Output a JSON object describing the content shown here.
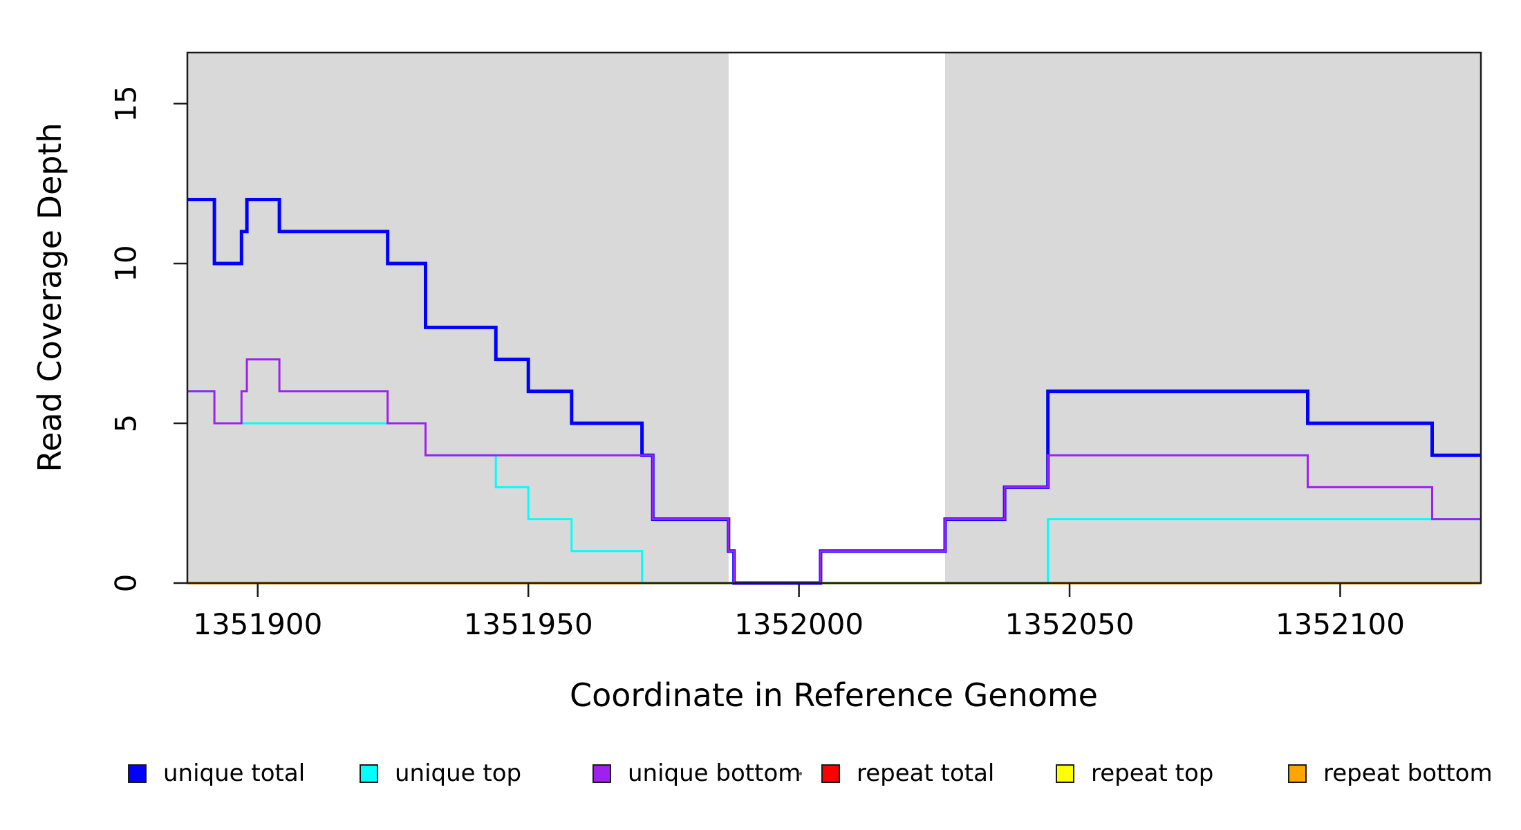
{
  "figure": {
    "x_axis_title": "Coordinate in Reference Genome",
    "y_axis_title": "Read Coverage Depth"
  },
  "chart_data": {
    "type": "line",
    "subtype": "step-after",
    "title": "",
    "xlabel": "Coordinate in Reference Genome",
    "ylabel": "Read Coverage Depth",
    "xlim": [
      1351887,
      1352126
    ],
    "ylim": [
      0,
      16.6
    ],
    "grid": false,
    "legend_position": "bottom",
    "axis_color": "#1a1a1a",
    "x_ticks": [
      {
        "value": 1351900,
        "label": "1351900"
      },
      {
        "value": 1351950,
        "label": "1351950"
      },
      {
        "value": 1352000,
        "label": "1352000"
      },
      {
        "value": 1352050,
        "label": "1352050"
      },
      {
        "value": 1352100,
        "label": "1352100"
      }
    ],
    "y_ticks": [
      {
        "value": 0,
        "label": "0"
      },
      {
        "value": 5,
        "label": "5"
      },
      {
        "value": 10,
        "label": "10"
      },
      {
        "value": 15,
        "label": "15"
      }
    ],
    "shaded_regions": [
      {
        "name": "left-gray-region",
        "from": 1351887,
        "to": 1351987,
        "color": "#d9d9d9"
      },
      {
        "name": "right-gray-region",
        "from": 1352027,
        "to": 1352126,
        "color": "#d9d9d9"
      }
    ],
    "draw_order": [
      "repeat total",
      "repeat top",
      "repeat bottom",
      "unique total",
      "unique top",
      "unique bottom"
    ],
    "series": [
      {
        "name": "unique total",
        "color": "#0000FF",
        "line_width": 5,
        "points": [
          [
            1351887,
            12
          ],
          [
            1351892,
            10
          ],
          [
            1351897,
            11
          ],
          [
            1351898,
            12
          ],
          [
            1351904,
            11
          ],
          [
            1351924,
            10
          ],
          [
            1351931,
            8
          ],
          [
            1351944,
            7
          ],
          [
            1351950,
            6
          ],
          [
            1351958,
            5
          ],
          [
            1351971,
            4
          ],
          [
            1351973,
            2
          ],
          [
            1351987,
            1
          ],
          [
            1351988,
            0
          ],
          [
            1352004,
            1
          ],
          [
            1352027,
            2
          ],
          [
            1352038,
            3
          ],
          [
            1352046,
            6
          ],
          [
            1352094,
            5
          ],
          [
            1352117,
            4
          ]
        ]
      },
      {
        "name": "unique top",
        "color": "#00FFFF",
        "line_width": 3,
        "points": [
          [
            1351887,
            6
          ],
          [
            1351892,
            5
          ],
          [
            1351931,
            4
          ],
          [
            1351944,
            3
          ],
          [
            1351950,
            2
          ],
          [
            1351958,
            1
          ],
          [
            1351971,
            0
          ],
          [
            1352046,
            2
          ]
        ]
      },
      {
        "name": "unique bottom",
        "color": "#A020F0",
        "line_width": 3,
        "points": [
          [
            1351887,
            6
          ],
          [
            1351892,
            5
          ],
          [
            1351897,
            6
          ],
          [
            1351898,
            7
          ],
          [
            1351904,
            6
          ],
          [
            1351924,
            5
          ],
          [
            1351931,
            4
          ],
          [
            1351973,
            2
          ],
          [
            1351987,
            1
          ],
          [
            1351988,
            0
          ],
          [
            1352004,
            1
          ],
          [
            1352027,
            2
          ],
          [
            1352038,
            3
          ],
          [
            1352046,
            4
          ],
          [
            1352094,
            3
          ],
          [
            1352117,
            2
          ]
        ]
      },
      {
        "name": "repeat total",
        "color": "#FF0000",
        "line_width": 3,
        "points": [
          [
            1351887,
            0
          ]
        ]
      },
      {
        "name": "repeat top",
        "color": "#FFFF00",
        "line_width": 3,
        "points": [
          [
            1351887,
            0
          ]
        ]
      },
      {
        "name": "repeat bottom",
        "color": "#FFA500",
        "line_width": 4,
        "points": [
          [
            1351887,
            0
          ]
        ]
      }
    ]
  },
  "legend": {
    "items": [
      {
        "label": "unique total",
        "color": "#0000FF"
      },
      {
        "label": "unique top",
        "color": "#00FFFF"
      },
      {
        "label": "unique bottom",
        "color": "#A020F0"
      },
      {
        "label": "repeat total",
        "color": "#FF0000"
      },
      {
        "label": "repeat top",
        "color": "#FFFF00"
      },
      {
        "label": "repeat bottom",
        "color": "#FFA500"
      }
    ]
  }
}
